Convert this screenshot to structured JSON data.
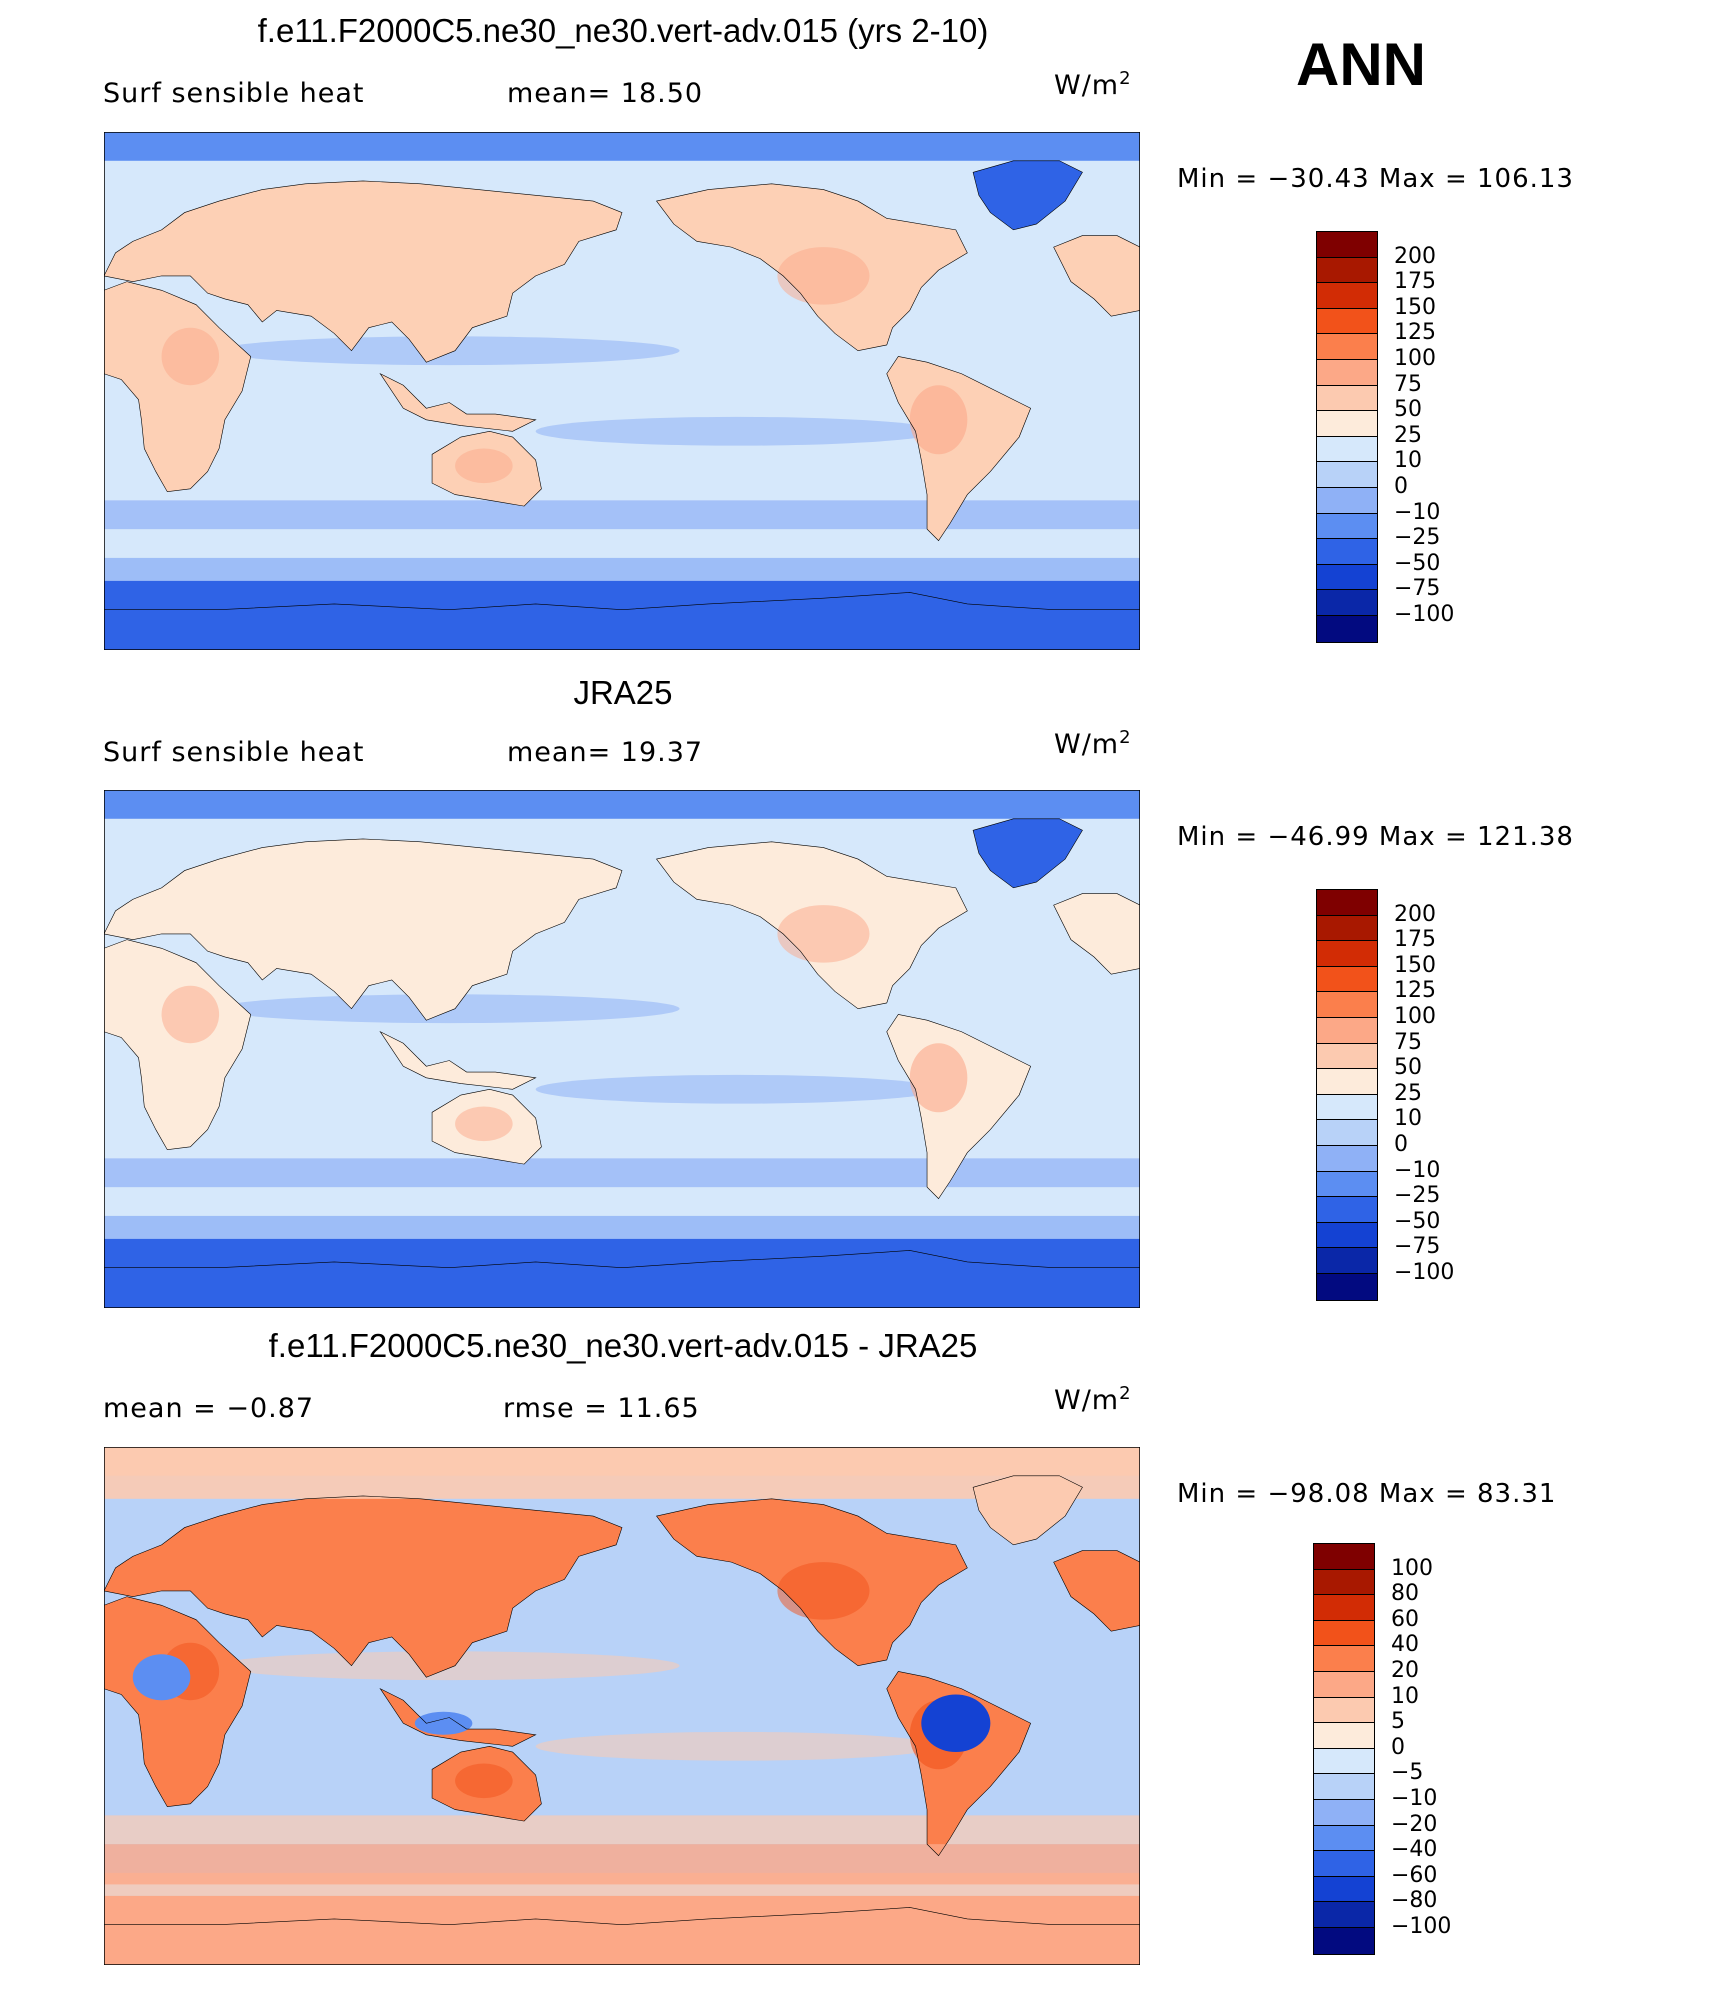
{
  "figure": {
    "season": "ANN",
    "palette": {
      "dark_red": "#7f0000",
      "red": "#c82400",
      "orange_red": "#f04a10",
      "orange": "#fb7a45",
      "salmon": "#fba88a",
      "peach": "#fdd0b5",
      "cream": "#fdecdc",
      "pale_blue": "#d6e8fb",
      "light_blue": "#b8d2f8",
      "mid_blue": "#8fb1f6",
      "blue": "#5c8ef2",
      "strong_blue": "#2f63e6",
      "deep_blue": "#1442d3",
      "navy": "#0a27a8",
      "dark_navy": "#020a80",
      "coast": "#000000"
    }
  },
  "panels": [
    {
      "title": "f.e11.F2000C5.ne30_ne30.vert-adv.015 (yrs 2-10)",
      "left_label": "Surf  sensible  heat",
      "stat": "mean=   18.50",
      "units": "W/m",
      "units_sup": "2",
      "minmax": "Min  =  −30.43  Max  =  106.13",
      "colorbar": {
        "labels": [
          "200",
          "175",
          "150",
          "125",
          "100",
          "75",
          "50",
          "25",
          "10",
          "0",
          "−10",
          "−25",
          "−50",
          "−75",
          "−100"
        ],
        "colors": [
          "#7f0000",
          "#a81800",
          "#d22c05",
          "#f2521a",
          "#fb7f4c",
          "#fca887",
          "#fccab0",
          "#fdebdb",
          "#d6e8fb",
          "#b8d2f8",
          "#8fb1f6",
          "#5c8ef2",
          "#2f63e6",
          "#1442d3",
          "#0a27a8",
          "#020a80"
        ]
      },
      "map": {
        "ocean": "#d6e8fb",
        "land": "#fdd0b5",
        "polar_south": "#2f63e6",
        "polar_north": "#5c8ef2",
        "greenland": "#2f63e6",
        "band": "#8fb1f6",
        "land_hot": "#fba88a"
      }
    },
    {
      "title": "JRA25",
      "left_label": "Surf  sensible  heat",
      "stat": "mean=   19.37",
      "units": "W/m",
      "units_sup": "2",
      "minmax": "Min  =  −46.99  Max  =  121.38",
      "colorbar": {
        "labels": [
          "200",
          "175",
          "150",
          "125",
          "100",
          "75",
          "50",
          "25",
          "10",
          "0",
          "−10",
          "−25",
          "−50",
          "−75",
          "−100"
        ],
        "colors": [
          "#7f0000",
          "#a81800",
          "#d22c05",
          "#f2521a",
          "#fb7f4c",
          "#fca887",
          "#fccab0",
          "#fdebdb",
          "#d6e8fb",
          "#b8d2f8",
          "#8fb1f6",
          "#5c8ef2",
          "#2f63e6",
          "#1442d3",
          "#0a27a8",
          "#020a80"
        ]
      },
      "map": {
        "ocean": "#d6e8fb",
        "land": "#fdebdb",
        "polar_south": "#2f63e6",
        "polar_north": "#5c8ef2",
        "greenland": "#2f63e6",
        "band": "#8fb1f6",
        "land_hot": "#fba88a"
      }
    },
    {
      "title": "f.e11.F2000C5.ne30_ne30.vert-adv.015 - JRA25",
      "left_label": "mean  =    −0.87",
      "stat": "rmse  =    11.65",
      "units": "W/m",
      "units_sup": "2",
      "minmax": "Min  =  −98.08  Max  =    83.31",
      "colorbar": {
        "labels": [
          "100",
          "80",
          "60",
          "40",
          "20",
          "10",
          "5",
          "0",
          "−5",
          "−10",
          "−20",
          "−40",
          "−60",
          "−80",
          "−100"
        ],
        "colors": [
          "#7f0000",
          "#a81800",
          "#d22c05",
          "#f2521a",
          "#fb7f4c",
          "#fca887",
          "#fccab0",
          "#fdebdb",
          "#d6e8fb",
          "#b8d2f8",
          "#8fb1f6",
          "#5c8ef2",
          "#2f63e6",
          "#1442d3",
          "#0a27a8",
          "#020a80"
        ]
      },
      "map": {
        "ocean": "#b8d2f8",
        "land": "#fb7f4c",
        "polar_south": "#fca887",
        "polar_north": "#fccab0",
        "greenland": "#fccab0",
        "band": "#fccab0",
        "land_hot": "#f2521a"
      }
    }
  ]
}
